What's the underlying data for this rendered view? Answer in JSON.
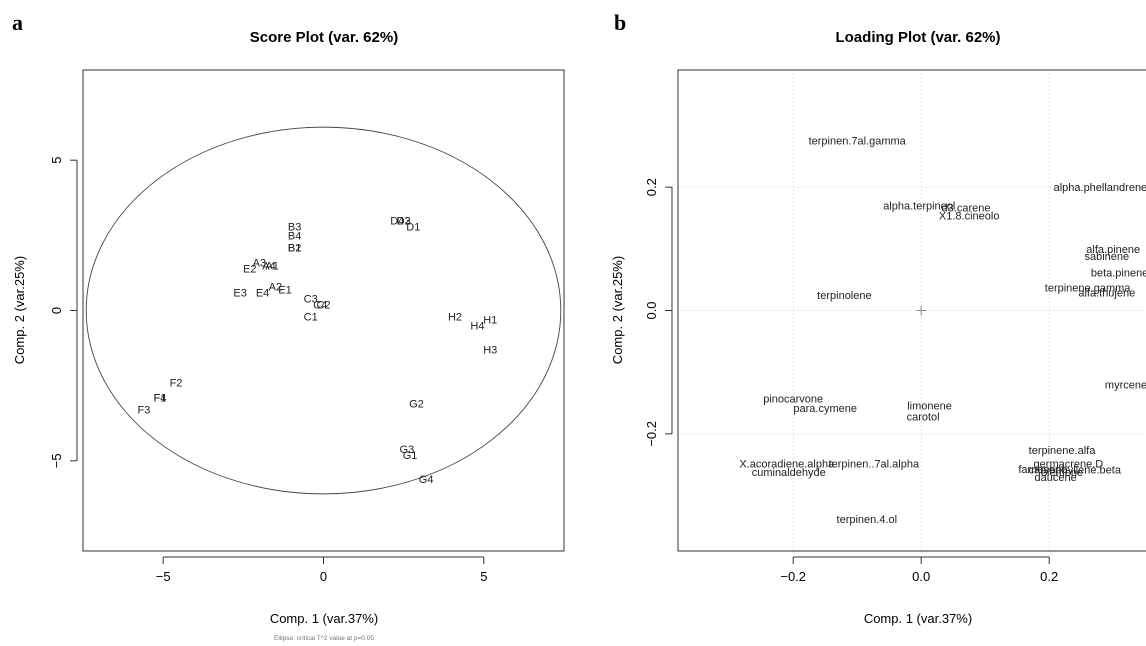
{
  "chart_data": [
    {
      "type": "scatter",
      "panel": "a",
      "title": "Score Plot (var. 62%)",
      "xlabel": "Comp. 1 (var.37%)",
      "ylabel": "Comp. 2 (var.25%)",
      "note": "Ellipse: critical T^2 value at p=0.05",
      "xlim": [
        -7.5,
        7.5
      ],
      "ylim": [
        -8,
        8
      ],
      "xticks": [
        -5,
        0,
        5
      ],
      "yticks": [
        -5,
        0,
        5
      ],
      "ellipse": {
        "cx": 0,
        "cy": 0,
        "rx": 7.4,
        "ry": 6.1
      },
      "points": [
        {
          "label": "B3",
          "x": -0.9,
          "y": 2.8
        },
        {
          "label": "B4",
          "x": -0.9,
          "y": 2.5
        },
        {
          "label": "B2",
          "x": -0.9,
          "y": 2.1
        },
        {
          "label": "B1",
          "x": -0.9,
          "y": 2.1
        },
        {
          "label": "D4",
          "x": 2.3,
          "y": 3.0
        },
        {
          "label": "D3",
          "x": 2.5,
          "y": 3.0
        },
        {
          "label": "D2",
          "x": 2.5,
          "y": 3.0
        },
        {
          "label": "D1",
          "x": 2.8,
          "y": 2.8
        },
        {
          "label": "A3",
          "x": -2.0,
          "y": 1.6
        },
        {
          "label": "A4",
          "x": -1.7,
          "y": 1.5
        },
        {
          "label": "A1",
          "x": -1.6,
          "y": 1.5
        },
        {
          "label": "E2",
          "x": -2.3,
          "y": 1.4
        },
        {
          "label": "A2",
          "x": -1.5,
          "y": 0.8
        },
        {
          "label": "E1",
          "x": -1.2,
          "y": 0.7
        },
        {
          "label": "E3",
          "x": -2.6,
          "y": 0.6
        },
        {
          "label": "E4",
          "x": -1.9,
          "y": 0.6
        },
        {
          "label": "C3",
          "x": -0.4,
          "y": 0.4
        },
        {
          "label": "C4",
          "x": -0.1,
          "y": 0.2
        },
        {
          "label": "C2",
          "x": 0.0,
          "y": 0.2
        },
        {
          "label": "C1",
          "x": -0.4,
          "y": -0.2
        },
        {
          "label": "H2",
          "x": 4.1,
          "y": -0.2
        },
        {
          "label": "H1",
          "x": 5.2,
          "y": -0.3
        },
        {
          "label": "H4",
          "x": 4.8,
          "y": -0.5
        },
        {
          "label": "H3",
          "x": 5.2,
          "y": -1.3
        },
        {
          "label": "F2",
          "x": -4.6,
          "y": -2.4
        },
        {
          "label": "F1",
          "x": -5.1,
          "y": -2.9
        },
        {
          "label": "F4",
          "x": -5.1,
          "y": -2.9
        },
        {
          "label": "F3",
          "x": -5.6,
          "y": -3.3
        },
        {
          "label": "G2",
          "x": 2.9,
          "y": -3.1
        },
        {
          "label": "G3",
          "x": 2.6,
          "y": -4.6
        },
        {
          "label": "G1",
          "x": 2.7,
          "y": -4.8
        },
        {
          "label": "G4",
          "x": 3.2,
          "y": -5.6
        }
      ]
    },
    {
      "type": "scatter",
      "panel": "b",
      "title": "Loading Plot (var. 62%)",
      "xlabel": "Comp. 1 (var.37%)",
      "ylabel": "Comp. 2 (var.25%)",
      "xlim": [
        -0.38,
        0.37
      ],
      "ylim": [
        -0.39,
        0.39
      ],
      "xticks": [
        -0.2,
        0.0,
        0.2
      ],
      "yticks": [
        -0.2,
        0.0,
        0.2
      ],
      "grid": true,
      "points": [
        {
          "label": "terpinen.7al.gamma",
          "x": -0.1,
          "y": 0.276
        },
        {
          "label": "alpha.phellandrene",
          "x": 0.28,
          "y": 0.2
        },
        {
          "label": "alpha.terpineol",
          "x": -0.003,
          "y": 0.17
        },
        {
          "label": "d3.carene",
          "x": 0.07,
          "y": 0.167
        },
        {
          "label": "X1.8.cineolo",
          "x": 0.075,
          "y": 0.154
        },
        {
          "label": "alfa.pinene",
          "x": 0.3,
          "y": 0.1
        },
        {
          "label": "sabinene",
          "x": 0.29,
          "y": 0.088
        },
        {
          "label": "beta.pinene",
          "x": 0.31,
          "y": 0.062
        },
        {
          "label": "terpinolene",
          "x": -0.12,
          "y": 0.025
        },
        {
          "label": "terpinene.gamma",
          "x": 0.26,
          "y": 0.037
        },
        {
          "label": "alfa.thujene",
          "x": 0.29,
          "y": 0.029
        },
        {
          "label": "myrcene",
          "x": 0.32,
          "y": -0.12
        },
        {
          "label": "pinocarvone",
          "x": -0.2,
          "y": -0.143
        },
        {
          "label": "para.cymene",
          "x": -0.15,
          "y": -0.158
        },
        {
          "label": "limonene",
          "x": 0.013,
          "y": -0.154
        },
        {
          "label": "carotol",
          "x": 0.003,
          "y": -0.172
        },
        {
          "label": "terpinene.alfa",
          "x": 0.22,
          "y": -0.226
        },
        {
          "label": "germacrene.D",
          "x": 0.23,
          "y": -0.248
        },
        {
          "label": "farnesene",
          "x": 0.19,
          "y": -0.257
        },
        {
          "label": "caryophyllene.beta",
          "x": 0.24,
          "y": -0.258
        },
        {
          "label": "elemene",
          "x": 0.22,
          "y": -0.262
        },
        {
          "label": "daucene",
          "x": 0.21,
          "y": -0.27
        },
        {
          "label": "X.acoradiene.alpha",
          "x": -0.21,
          "y": -0.248
        },
        {
          "label": "cuminaldehyde",
          "x": -0.207,
          "y": -0.262
        },
        {
          "label": "terpinen..7al.alpha",
          "x": -0.074,
          "y": -0.248
        },
        {
          "label": "terpinen.4.ol",
          "x": -0.085,
          "y": -0.338
        }
      ]
    }
  ]
}
